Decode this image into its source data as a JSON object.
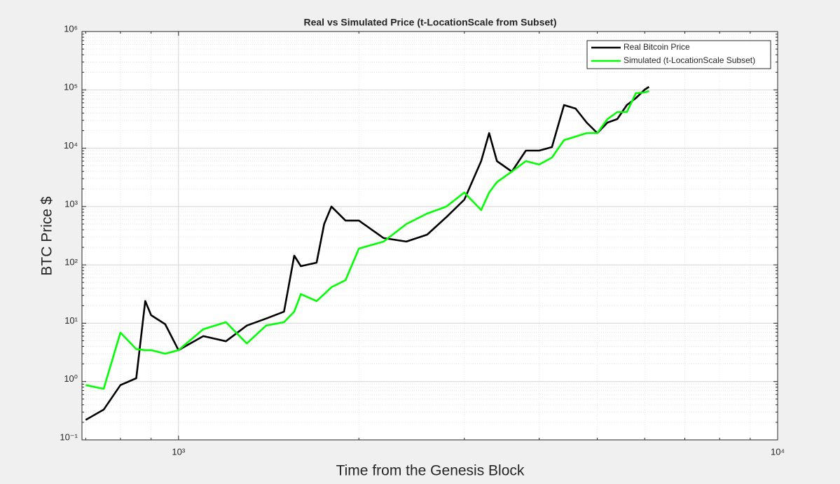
{
  "chart_data": {
    "type": "line",
    "title": "Real vs Simulated Price (t-LocationScale from Subset)",
    "x_label": "Time from the Genesis Block",
    "y_label": "BTC Price $",
    "x": [
      700,
      750,
      800,
      850,
      880,
      900,
      950,
      1000,
      1100,
      1200,
      1300,
      1400,
      1500,
      1560,
      1600,
      1700,
      1750,
      1800,
      1900,
      2000,
      2200,
      2400,
      2600,
      2800,
      3000,
      3200,
      3300,
      3400,
      3600,
      3800,
      4000,
      4200,
      4400,
      4600,
      4800,
      5000,
      5200,
      5400,
      5600,
      5800,
      6000,
      6100
    ],
    "series": [
      {
        "name": "Real Bitcoin Price",
        "color": "#000000",
        "values": [
          0.22,
          0.33,
          0.87,
          1.14,
          24,
          13.7,
          9.6,
          3.45,
          6,
          4.9,
          9.1,
          12,
          15.8,
          144,
          95,
          109,
          500,
          1000,
          574,
          574,
          288,
          251,
          330,
          659,
          1315,
          6010,
          18150,
          6010,
          3970,
          9100,
          9100,
          10450,
          54800,
          47800,
          27500,
          18150,
          27500,
          31550,
          54800,
          72400,
          101000,
          112700
        ]
      },
      {
        "name": "Simulated (t-LocationScale Subset)",
        "color": "#00ff00",
        "values": [
          0.87,
          0.75,
          6.9,
          3.6,
          3.45,
          3.45,
          3,
          3.45,
          7.9,
          10.4,
          4.5,
          9.1,
          10.4,
          15.8,
          31.5,
          24,
          31.5,
          41.5,
          54.7,
          190,
          251,
          500,
          757,
          1000,
          1734,
          869,
          1734,
          2624,
          3970,
          6010,
          5240,
          6900,
          13770,
          15800,
          18150,
          18150,
          31550,
          41600,
          41600,
          87900,
          90300,
          95400
        ]
      }
    ],
    "log_x": true,
    "log_y": true,
    "xlim": [
      690,
      10000
    ],
    "xticks": [
      {
        "value": 1000,
        "label": "10³"
      },
      {
        "value": 10000,
        "label": "10⁴"
      }
    ],
    "ylim": [
      0.1,
      1000000
    ],
    "yticks": [
      {
        "value": 0.1,
        "label": "10⁻¹"
      },
      {
        "value": 1,
        "label": "10⁰"
      },
      {
        "value": 10,
        "label": "10¹"
      },
      {
        "value": 100,
        "label": "10²"
      },
      {
        "value": 1000,
        "label": "10³"
      },
      {
        "value": 10000,
        "label": "10⁴"
      },
      {
        "value": 100000,
        "label": "10⁵"
      },
      {
        "value": 1000000,
        "label": "10⁶"
      }
    ],
    "grid": true,
    "minor_grid": true,
    "legend": "top-right"
  }
}
